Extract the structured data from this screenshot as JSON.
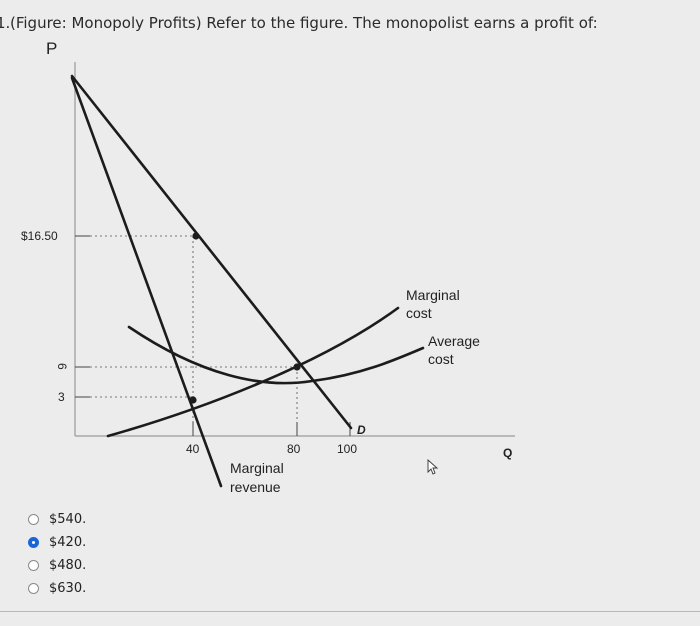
{
  "question": {
    "number": "1.",
    "text": "(Figure: Monopoly Profits) Refer to the figure. The monopolist earns a profit of:"
  },
  "figure": {
    "axis_y_label": "P",
    "axis_x_label": "Q",
    "price_ticks": [
      "$16.50",
      "6",
      "3"
    ],
    "quantity_ticks": [
      "40",
      "80",
      "100"
    ],
    "labels": {
      "demand": "D",
      "marginal_revenue_line1": "Marginal",
      "marginal_revenue_line2": "revenue",
      "marginal_cost_line1": "Marginal",
      "marginal_cost_line2": "cost",
      "average_cost_line1": "Average",
      "average_cost_line2": "cost"
    }
  },
  "answers": {
    "options": [
      {
        "label": "$540.",
        "selected": false
      },
      {
        "label": "$420.",
        "selected": true
      },
      {
        "label": "$480.",
        "selected": false
      },
      {
        "label": "$630.",
        "selected": false
      }
    ]
  },
  "colors": {
    "background": "#ececec",
    "curve": "#1c1c1c",
    "selected_radio": "#1a66d9"
  }
}
